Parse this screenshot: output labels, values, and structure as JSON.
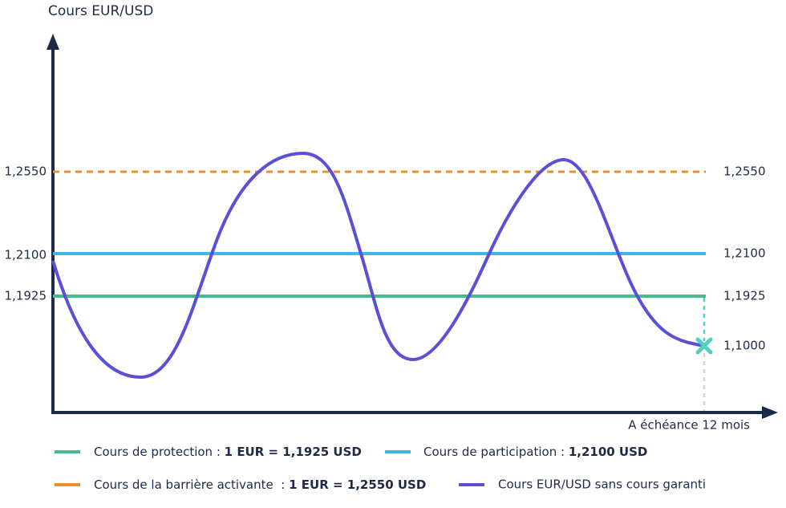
{
  "axis_title": "Cours EUR/USD",
  "x_label": "A échéance 12 mois",
  "levels": [
    {
      "label": "1,2550"
    },
    {
      "label": "1,2100"
    },
    {
      "label": "1,1925"
    }
  ],
  "end_label": "1,1000",
  "legend": [
    {
      "text": "Cours de protection : ",
      "bold": "1 EUR = 1,1925 USD"
    },
    {
      "text": "Cours de participation : ",
      "bold": "1,2100 USD"
    },
    {
      "text": "Cours de la barrière activante  : ",
      "bold": "1 EUR = 1,2550 USD"
    },
    {
      "text": "Cours EUR/USD sans cours garanti"
    }
  ]
}
